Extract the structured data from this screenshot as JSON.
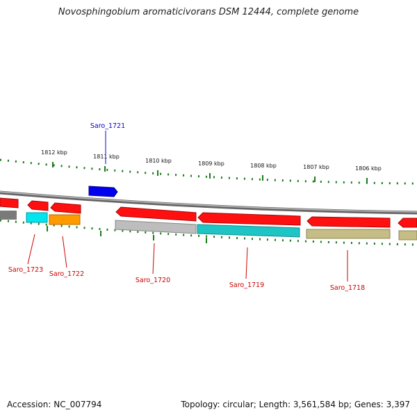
{
  "title": "Novosphingobium aromaticivorans DSM 12444, complete genome",
  "footer": {
    "accession": "Accession: NC_007794",
    "summary": "Topology: circular; Length: 3,561,584 bp; Genes: 3,397"
  },
  "ruler": {
    "ticks": [
      "1812 kbp",
      "1811 kbp",
      "1810 kbp",
      "1809 kbp",
      "1808 kbp",
      "1807 kbp",
      "1806 kbp"
    ]
  },
  "genes": [
    {
      "id": "Saro_1723",
      "label": "Saro_1723",
      "color": "#ff0000"
    },
    {
      "id": "Saro_1722",
      "label": "Saro_1722",
      "color": "#ff0000"
    },
    {
      "id": "Saro_1721",
      "label": "Saro_1721",
      "color": "#0000cc"
    },
    {
      "id": "Saro_1720",
      "label": "Saro_1720",
      "color": "#ff0000"
    },
    {
      "id": "Saro_1719",
      "label": "Saro_1719",
      "color": "#ff0000"
    },
    {
      "id": "Saro_1718",
      "label": "Saro_1718",
      "color": "#ff0000"
    }
  ],
  "colors": {
    "cds": "#ff0000",
    "forward_cds": "#0000ff",
    "backbone": "#888888",
    "tick": "#1a7a1a",
    "grey_feature": "#aaaaaa",
    "cyan_feature": "#00cccc",
    "orange_feature": "#ff9900",
    "olive_feature": "#b5ad6e"
  }
}
